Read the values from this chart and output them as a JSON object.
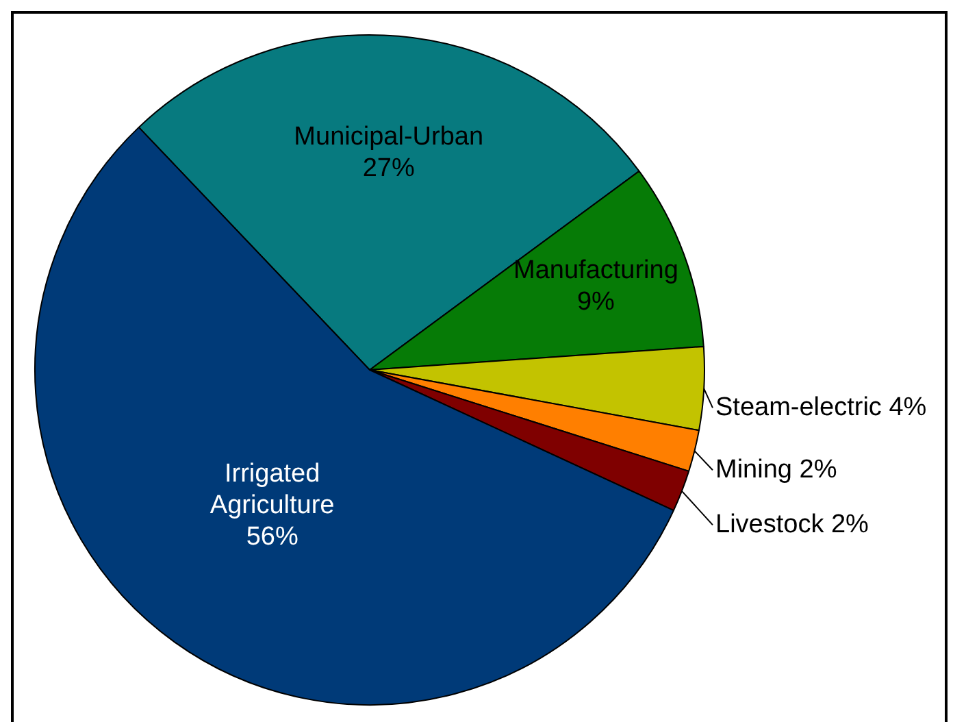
{
  "chart_data": {
    "type": "pie",
    "categories": [
      "Municipal-Urban",
      "Manufacturing",
      "Steam-electric",
      "Mining",
      "Livestock",
      "Irrigated Agriculture"
    ],
    "values": [
      27,
      9,
      4,
      2,
      2,
      56
    ],
    "colors": [
      "#077a7f",
      "#067b06",
      "#c3c300",
      "#ff7f00",
      "#7f0000",
      "#003a78"
    ],
    "value_labels": [
      "27%",
      "9%",
      "4%",
      "2%",
      "2%",
      "56%"
    ]
  }
}
